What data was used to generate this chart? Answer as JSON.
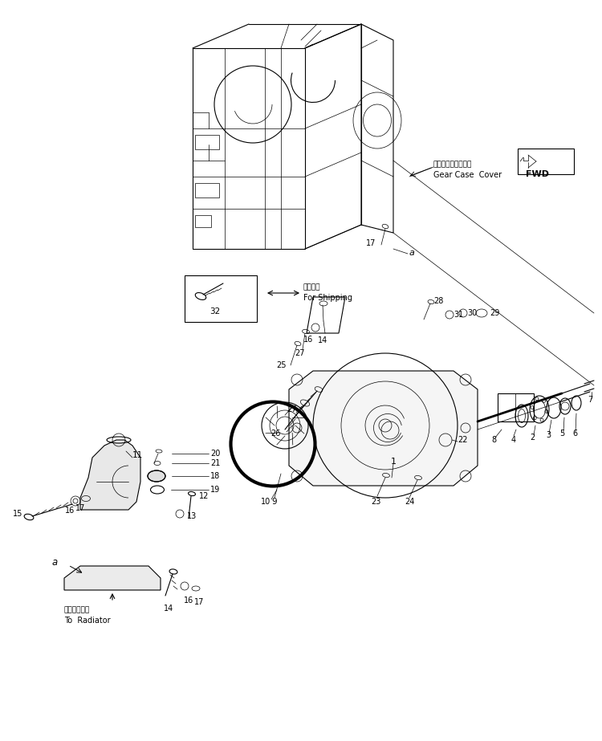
{
  "background_color": "#ffffff",
  "line_color": "#000000",
  "fig_width": 7.5,
  "fig_height": 9.23,
  "dpi": 100,
  "labels": {
    "gear_case_cover_jp": "ギヤーケースカバー",
    "gear_case_cover_en": "Gear Case  Cover",
    "for_shipping_jp": "運携部品",
    "for_shipping_en": "For Shipping",
    "to_radiator_jp": "ラジエータへ",
    "to_radiator_en": "To  Radiator",
    "fwd": "FWD"
  }
}
